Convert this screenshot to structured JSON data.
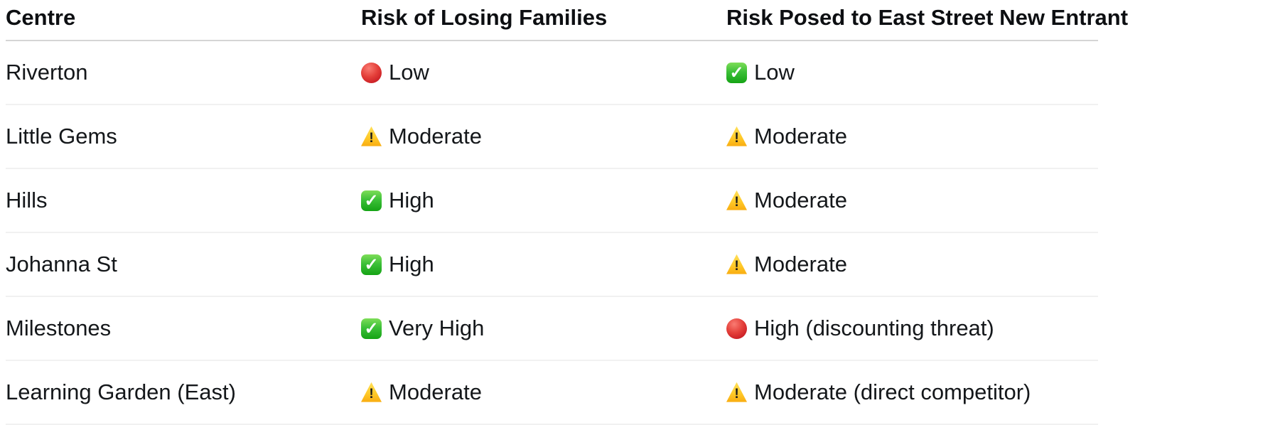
{
  "table": {
    "columns": [
      {
        "label": "Centre"
      },
      {
        "label": "Risk of Losing Families"
      },
      {
        "label": "Risk Posed to East Street New Entrant"
      }
    ],
    "rows": [
      {
        "centre": "Riverton",
        "risk_families": {
          "icon": "red-circle",
          "label": "Low"
        },
        "risk_entrant": {
          "icon": "green-check",
          "label": "Low"
        }
      },
      {
        "centre": "Little Gems",
        "risk_families": {
          "icon": "warning",
          "label": "Moderate"
        },
        "risk_entrant": {
          "icon": "warning",
          "label": "Moderate"
        }
      },
      {
        "centre": "Hills",
        "risk_families": {
          "icon": "green-check",
          "label": "High"
        },
        "risk_entrant": {
          "icon": "warning",
          "label": "Moderate"
        }
      },
      {
        "centre": "Johanna St",
        "risk_families": {
          "icon": "green-check",
          "label": "High"
        },
        "risk_entrant": {
          "icon": "warning",
          "label": "Moderate"
        }
      },
      {
        "centre": "Milestones",
        "risk_families": {
          "icon": "green-check",
          "label": "Very High"
        },
        "risk_entrant": {
          "icon": "red-circle",
          "label": "High (discounting threat)"
        }
      },
      {
        "centre": "Learning Garden (East)",
        "risk_families": {
          "icon": "warning",
          "label": "Moderate"
        },
        "risk_entrant": {
          "icon": "warning",
          "label": "Moderate (direct competitor)"
        }
      }
    ]
  },
  "icons": {
    "red-circle": "red-circle-emoji",
    "warning": "warning-triangle-emoji",
    "green-check": "green-check-button-emoji"
  },
  "colors": {
    "text": "#14171a",
    "header_text": "#0d0f12",
    "header_divider": "#d5d5d5",
    "row_divider": "#f1f1f1",
    "red_circle": "#d7302f",
    "warning_yellow": "#ffc928",
    "check_green": "#2db52d",
    "background": "#ffffff"
  }
}
